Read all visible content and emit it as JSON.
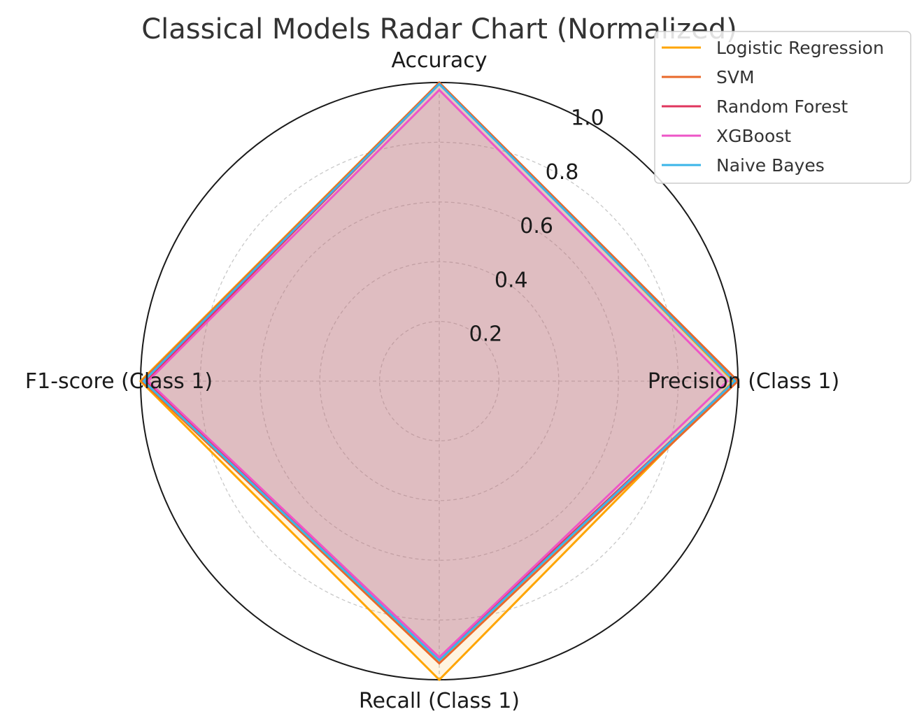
{
  "chart_data": {
    "type": "radar",
    "title": "Classical Models Radar Chart (Normalized)",
    "axes": [
      "Accuracy",
      "Precision (Class 1)",
      "Recall (Class 1)",
      "F1-score (Class 1)"
    ],
    "radial_ticks": [
      "0.2",
      "0.4",
      "0.6",
      "0.8",
      "1.0"
    ],
    "radial_tick_values": [
      0.2,
      0.4,
      0.6,
      0.8,
      1.0
    ],
    "rlim": [
      0,
      1.0
    ],
    "grid": true,
    "legend_position": "top-right",
    "series": [
      {
        "name": "Logistic Regression",
        "color": "#FFA500",
        "values": [
          1.0,
          0.985,
          1.0,
          1.0
        ]
      },
      {
        "name": "SVM",
        "color": "#E8692A",
        "values": [
          1.0,
          1.0,
          0.945,
          0.995
        ]
      },
      {
        "name": "Random Forest",
        "color": "#E0365E",
        "values": [
          0.995,
          0.99,
          0.925,
          0.98
        ]
      },
      {
        "name": "XGBoost",
        "color": "#EE55C7",
        "values": [
          0.975,
          0.965,
          0.925,
          0.975
        ]
      },
      {
        "name": "Naive Bayes",
        "color": "#3AB5E8",
        "values": [
          0.995,
          0.99,
          0.935,
          0.99
        ]
      }
    ]
  }
}
